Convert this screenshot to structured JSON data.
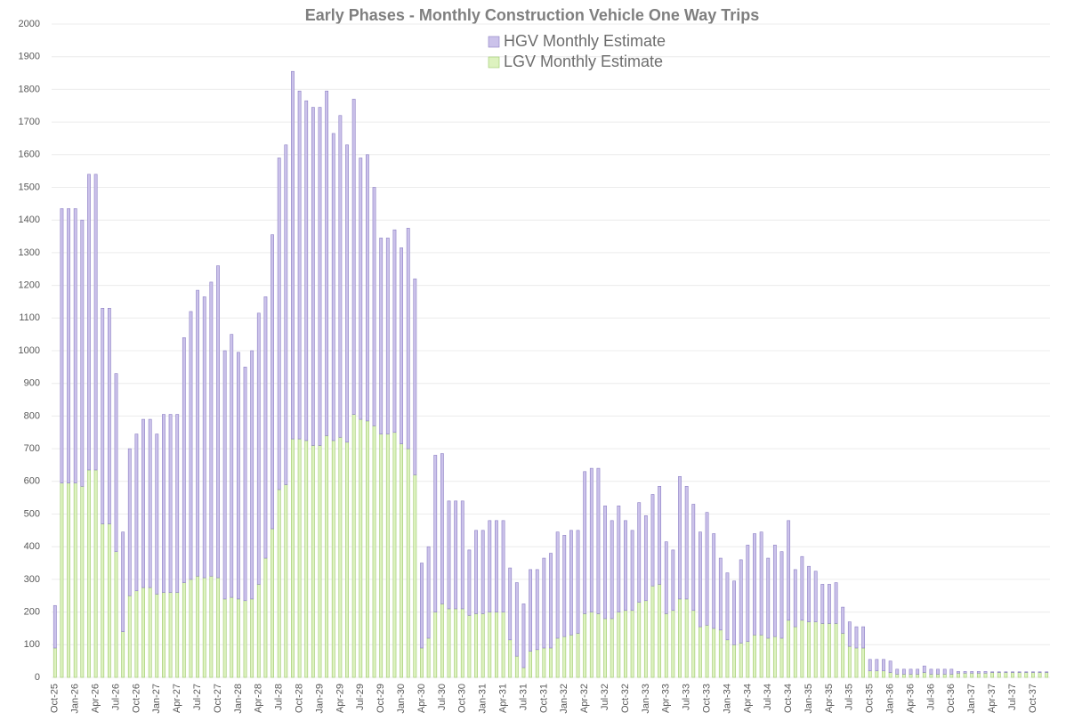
{
  "chart_data": {
    "type": "stacked_bar",
    "title": "Early Phases - Monthly Construction Vehicle One Way Trips",
    "categories": [
      "Oct-25",
      null,
      null,
      "Jan-26",
      null,
      null,
      "Apr-26",
      null,
      null,
      "Jul-26",
      null,
      null,
      "Oct-26",
      null,
      null,
      "Jan-27",
      null,
      null,
      "Apr-27",
      null,
      null,
      "Jul-27",
      null,
      null,
      "Oct-27",
      null,
      null,
      "Jan-28",
      null,
      null,
      "Apr-28",
      null,
      null,
      "Jul-28",
      null,
      null,
      "Oct-28",
      null,
      null,
      "Jan-29",
      null,
      null,
      "Apr-29",
      null,
      null,
      "Jul-29",
      null,
      null,
      "Oct-29",
      null,
      null,
      "Jan-30",
      null,
      null,
      "Apr-30",
      null,
      null,
      "Jul-30",
      null,
      null,
      "Oct-30",
      null,
      null,
      "Jan-31",
      null,
      null,
      "Apr-31",
      null,
      null,
      "Jul-31",
      null,
      null,
      "Oct-31",
      null,
      null,
      "Jan-32",
      null,
      null,
      "Apr-32",
      null,
      null,
      "Jul-32",
      null,
      null,
      "Oct-32",
      null,
      null,
      "Jan-33",
      null,
      null,
      "Apr-33",
      null,
      null,
      "Jul-33",
      null,
      null,
      "Oct-33",
      null,
      null,
      "Jan-34",
      null,
      null,
      "Apr-34",
      null,
      null,
      "Jul-34",
      null,
      null,
      "Oct-34",
      null,
      null,
      "Jan-35",
      null,
      null,
      "Apr-35",
      null,
      null,
      "Jul-35",
      null,
      null,
      "Oct-35",
      null,
      null,
      "Jan-36",
      null,
      null,
      "Apr-36",
      null,
      null,
      "Jul-36",
      null,
      null,
      "Oct-36",
      null,
      null,
      "Jan-37",
      null,
      null,
      "Apr-37",
      null,
      null,
      "Jul-37",
      null,
      null,
      "Oct-37",
      null,
      null
    ],
    "series": [
      {
        "name": "HGV Monthly Estimate",
        "color": "#cbc2ea",
        "values": [
          130,
          840,
          840,
          840,
          815,
          905,
          905,
          660,
          660,
          545,
          305,
          450,
          480,
          515,
          515,
          490,
          545,
          545,
          545,
          750,
          820,
          875,
          860,
          900,
          955,
          760,
          805,
          755,
          715,
          760,
          830,
          800,
          900,
          1015,
          1040,
          1125,
          1065,
          1040,
          1035,
          1035,
          1055,
          940,
          985,
          910,
          965,
          800,
          815,
          730,
          600,
          600,
          620,
          600,
          675,
          600,
          260,
          280,
          480,
          460,
          330,
          330,
          330,
          200,
          255,
          255,
          280,
          280,
          280,
          220,
          225,
          195,
          250,
          245,
          275,
          290,
          325,
          310,
          320,
          315,
          435,
          440,
          445,
          345,
          300,
          325,
          275,
          245,
          305,
          260,
          280,
          300,
          220,
          185,
          375,
          345,
          325,
          290,
          345,
          290,
          220,
          205,
          195,
          255,
          295,
          310,
          315,
          245,
          280,
          265,
          305,
          175,
          195,
          170,
          155,
          120,
          120,
          125,
          80,
          75,
          65,
          65,
          35,
          35,
          35,
          35,
          15,
          15,
          15,
          15,
          20,
          15,
          15,
          15,
          15,
          5,
          5,
          5,
          5,
          5,
          2,
          2,
          2,
          2,
          2,
          2,
          2,
          2,
          2
        ]
      },
      {
        "name": "LGV Monthly Estimate",
        "color": "#ddf2bf",
        "values": [
          90,
          595,
          595,
          595,
          585,
          635,
          635,
          470,
          470,
          385,
          140,
          250,
          265,
          275,
          275,
          255,
          260,
          260,
          260,
          290,
          300,
          310,
          305,
          310,
          305,
          240,
          245,
          240,
          235,
          240,
          285,
          365,
          455,
          575,
          590,
          730,
          730,
          725,
          710,
          710,
          740,
          725,
          735,
          720,
          805,
          790,
          785,
          770,
          745,
          745,
          750,
          715,
          700,
          620,
          90,
          120,
          200,
          225,
          210,
          210,
          210,
          190,
          195,
          195,
          200,
          200,
          200,
          115,
          65,
          30,
          80,
          85,
          90,
          90,
          120,
          125,
          130,
          135,
          195,
          200,
          195,
          180,
          180,
          200,
          205,
          205,
          230,
          235,
          280,
          285,
          195,
          205,
          240,
          240,
          205,
          155,
          160,
          150,
          145,
          115,
          100,
          105,
          110,
          130,
          130,
          120,
          125,
          120,
          175,
          155,
          175,
          170,
          170,
          165,
          165,
          165,
          135,
          95,
          90,
          90,
          20,
          20,
          20,
          15,
          10,
          10,
          10,
          10,
          15,
          10,
          10,
          10,
          10,
          13,
          13,
          13,
          13,
          13,
          15,
          15,
          15,
          15,
          15,
          15,
          15,
          15,
          15
        ]
      }
    ],
    "ylim": [
      0,
      2000
    ],
    "yticks": [
      0,
      100,
      200,
      300,
      400,
      500,
      600,
      700,
      800,
      900,
      1000,
      1100,
      1200,
      1300,
      1400,
      1500,
      1600,
      1700,
      1800,
      1900,
      2000
    ],
    "grid": true
  }
}
